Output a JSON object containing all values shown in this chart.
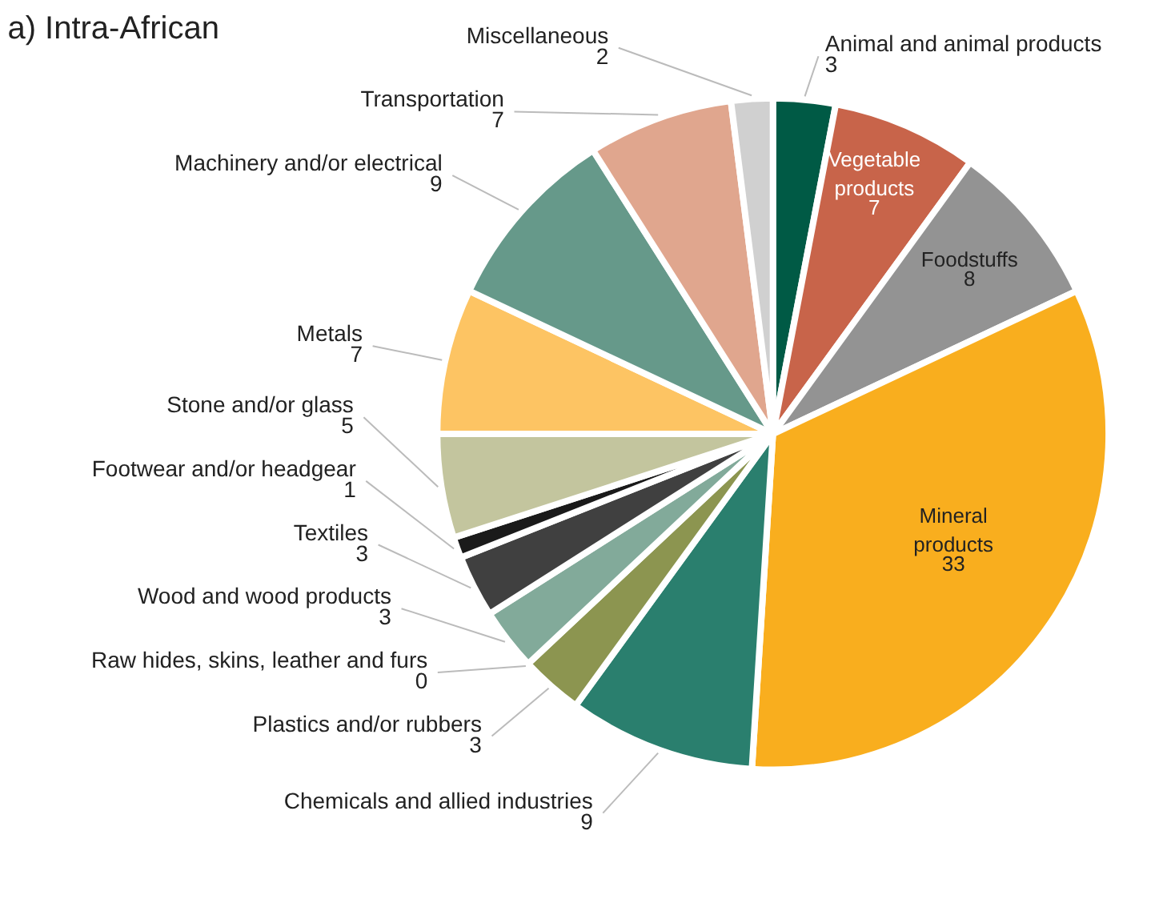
{
  "chart_data": {
    "type": "pie",
    "title": "a) Intra-African",
    "categories": [
      "Animal and animal products",
      "Vegetable products",
      "Foodstuffs",
      "Mineral products",
      "Chemicals and allied industries",
      "Plastics and/or rubbers",
      "Raw hides, skins, leather and furs",
      "Wood and wood products",
      "Textiles",
      "Footwear and/or headgear",
      "Stone and/or glass",
      "Metals",
      "Machinery and/or electrical",
      "Transportation",
      "Miscellaneous"
    ],
    "values": [
      3,
      7,
      8,
      33,
      9,
      3,
      0,
      3,
      3,
      1,
      5,
      7,
      9,
      7,
      2
    ],
    "colors": [
      "#005a45",
      "#c8644a",
      "#939393",
      "#f9ae1e",
      "#2a7f6e",
      "#8c9550",
      "#b0b0b0",
      "#82aa9a",
      "#404040",
      "#1a1a1a",
      "#c3c59e",
      "#fdc463",
      "#66998a",
      "#e0a68e",
      "#d0d0d0"
    ],
    "value_labels": [
      "3",
      "7",
      "8",
      "33",
      "9",
      "3",
      "0",
      "3",
      "3",
      "1",
      "5",
      "7",
      "9",
      "7",
      "2"
    ]
  }
}
